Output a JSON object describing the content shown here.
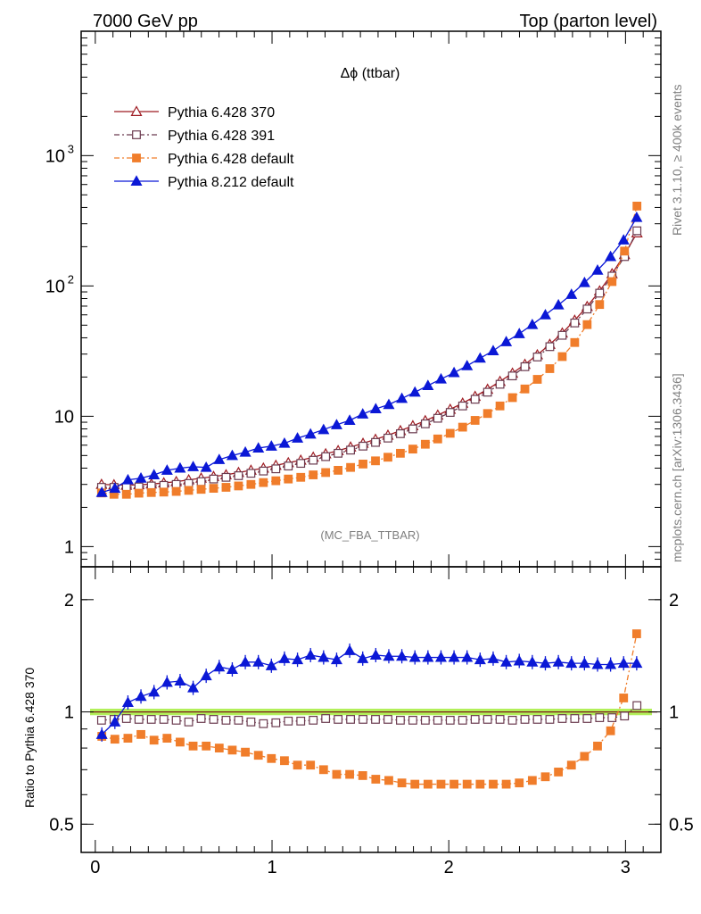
{
  "header": {
    "left": "7000 GeV pp",
    "right": "Top (parton level)"
  },
  "side_labels": {
    "rivet": "Rivet 3.1.10, ≥ 400k events",
    "mcplots": "mcplots.cern.ch [arXiv:1306.3436]"
  },
  "chart_data": [
    {
      "type": "line",
      "title": "Δϕ (ttbar)",
      "watermark": "(MC_FBA_TTBAR)",
      "xlim": [
        -0.08,
        3.2
      ],
      "ylim": [
        0.7,
        9000
      ],
      "yscale": "log",
      "yticks": [
        {
          "v": 1,
          "t": "1"
        },
        {
          "v": 10,
          "t": "10"
        },
        {
          "v": 100,
          "t": "10",
          "sup": "2"
        },
        {
          "v": 1000,
          "t": "10",
          "sup": "3"
        }
      ],
      "legend_position": "top-left",
      "series": [
        {
          "name": "Pythia 6.428 370",
          "color": "#9e1b22",
          "marker": "triangle-open",
          "dash": "",
          "values": [
            3.0,
            2.98,
            2.96,
            2.98,
            3.02,
            3.08,
            3.15,
            3.25,
            3.35,
            3.45,
            3.55,
            3.7,
            3.85,
            4.0,
            4.2,
            4.4,
            4.6,
            4.85,
            5.15,
            5.45,
            5.8,
            6.2,
            6.65,
            7.15,
            7.75,
            8.45,
            9.25,
            10.2,
            11.3,
            12.6,
            14.2,
            16.1,
            18.5,
            21.4,
            25.0,
            29.6,
            35.6,
            43.5,
            54.5,
            69.5,
            91.5,
            124,
            174,
            255
          ]
        },
        {
          "name": "Pythia 6.428 391",
          "color": "#6b3b4f",
          "marker": "square-open",
          "dash": "6,3,2,3",
          "values": [
            2.85,
            2.85,
            2.85,
            2.87,
            2.92,
            2.95,
            3.0,
            3.05,
            3.15,
            3.3,
            3.4,
            3.5,
            3.65,
            3.8,
            3.95,
            4.15,
            4.35,
            4.6,
            4.9,
            5.2,
            5.5,
            5.9,
            6.3,
            6.8,
            7.35,
            8.0,
            8.75,
            9.65,
            10.7,
            12.0,
            13.5,
            15.3,
            17.6,
            20.4,
            24.0,
            28.5,
            34.2,
            41.8,
            52.0,
            66.5,
            88.0,
            119,
            168,
            265
          ]
        },
        {
          "name": "Pythia 6.428 default",
          "color": "#f07d2b",
          "marker": "square-filled",
          "dash": "6,3,2,3",
          "values": [
            2.58,
            2.52,
            2.52,
            2.57,
            2.6,
            2.62,
            2.65,
            2.7,
            2.75,
            2.8,
            2.85,
            2.92,
            3.0,
            3.1,
            3.2,
            3.3,
            3.4,
            3.55,
            3.7,
            3.85,
            4.05,
            4.3,
            4.55,
            4.85,
            5.2,
            5.6,
            6.1,
            6.7,
            7.4,
            8.25,
            9.3,
            10.5,
            12.0,
            13.9,
            16.2,
            19.2,
            23.2,
            28.7,
            36.8,
            50.5,
            72.0,
            108,
            185,
            410
          ]
        },
        {
          "name": "Pythia 8.212 default",
          "color": "#0b18d6",
          "marker": "triangle-filled",
          "dash": "",
          "values": [
            2.6,
            2.8,
            3.25,
            3.35,
            3.55,
            3.85,
            4.0,
            4.1,
            4.05,
            4.65,
            5.0,
            5.3,
            5.7,
            5.9,
            6.2,
            6.8,
            7.3,
            7.9,
            8.6,
            9.3,
            10.4,
            11.4,
            12.3,
            13.7,
            15.3,
            17.2,
            19.3,
            21.6,
            24.4,
            27.9,
            31.8,
            37.3,
            43.0,
            50.5,
            60.0,
            71.5,
            86.0,
            106,
            132,
            168,
            225,
            335
          ]
        }
      ]
    },
    {
      "type": "line",
      "ylabel": "Ratio to Pythia 6.428 370",
      "ylim": [
        0.42,
        2.45
      ],
      "yscale": "log",
      "yticks": [
        {
          "v": 0.5,
          "t": "0.5"
        },
        {
          "v": 1,
          "t": "1"
        },
        {
          "v": 2,
          "t": "2"
        }
      ],
      "xticks": [
        {
          "v": 0,
          "t": "0"
        },
        {
          "v": 1,
          "t": "1"
        },
        {
          "v": 2,
          "t": "2"
        },
        {
          "v": 3,
          "t": "3"
        }
      ],
      "reference_band": [
        0.98,
        1.02
      ],
      "series": [
        {
          "name": "Pythia 6.428 391",
          "color": "#6b3b4f",
          "marker": "square-open",
          "dash": "6,3,2,3",
          "values": [
            0.95,
            0.955,
            0.96,
            0.955,
            0.955,
            0.955,
            0.95,
            0.94,
            0.96,
            0.955,
            0.95,
            0.95,
            0.94,
            0.93,
            0.935,
            0.945,
            0.945,
            0.95,
            0.96,
            0.955,
            0.955,
            0.955,
            0.955,
            0.955,
            0.95,
            0.95,
            0.95,
            0.95,
            0.95,
            0.95,
            0.955,
            0.955,
            0.955,
            0.95,
            0.955,
            0.955,
            0.955,
            0.96,
            0.96,
            0.96,
            0.965,
            0.965,
            0.975,
            1.04
          ]
        },
        {
          "name": "Pythia 6.428 default",
          "color": "#f07d2b",
          "marker": "square-filled",
          "dash": "6,3,2,3",
          "values": [
            0.86,
            0.845,
            0.85,
            0.87,
            0.84,
            0.85,
            0.83,
            0.81,
            0.81,
            0.8,
            0.79,
            0.78,
            0.765,
            0.75,
            0.74,
            0.72,
            0.72,
            0.7,
            0.68,
            0.68,
            0.675,
            0.66,
            0.655,
            0.645,
            0.64,
            0.64,
            0.64,
            0.64,
            0.64,
            0.64,
            0.64,
            0.64,
            0.645,
            0.655,
            0.67,
            0.69,
            0.72,
            0.76,
            0.81,
            0.89,
            1.09,
            1.62
          ]
        },
        {
          "name": "Pythia 8.212 default",
          "color": "#0b18d6",
          "marker": "triangle-filled",
          "dash": "",
          "values": [
            0.87,
            0.94,
            1.06,
            1.1,
            1.13,
            1.2,
            1.21,
            1.16,
            1.25,
            1.32,
            1.3,
            1.36,
            1.36,
            1.33,
            1.39,
            1.38,
            1.42,
            1.4,
            1.38,
            1.46,
            1.39,
            1.42,
            1.41,
            1.41,
            1.4,
            1.4,
            1.4,
            1.4,
            1.4,
            1.38,
            1.39,
            1.36,
            1.37,
            1.36,
            1.35,
            1.36,
            1.35,
            1.35,
            1.34,
            1.34,
            1.35,
            1.35
          ]
        }
      ]
    }
  ],
  "colors": {
    "band": "#b2f05a",
    "axis": "#000000"
  }
}
